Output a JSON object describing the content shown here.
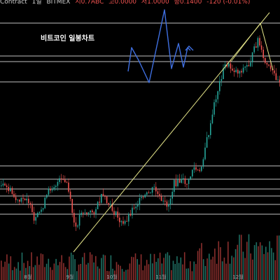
{
  "header": {
    "symbol": "Contract",
    "interval": "1일",
    "exchange": "BITMEX",
    "ohlc_open": "시0.7ABC",
    "ohlc_high": "고0.0000",
    "ohlc_low": "저1.0000",
    "ohlc_close": "종0.1400",
    "change": "-120 (-0.01%)"
  },
  "chart_title": "비트코인 일봉차트",
  "chart_data": {
    "type": "candlestick",
    "title": "비트코인 일봉차트",
    "x_tick_labels": [
      "8월",
      "9월",
      "10월",
      "11월",
      "12월"
    ],
    "colors": {
      "up": "#26a69a",
      "down": "#ef5350",
      "horizontal_lines": "#ffffff",
      "trendline": "#e6e68a",
      "drawing": "#3f6fe0",
      "background": "#000000"
    },
    "horizontal_levels_count": 10,
    "grid": false,
    "legend": "none"
  }
}
